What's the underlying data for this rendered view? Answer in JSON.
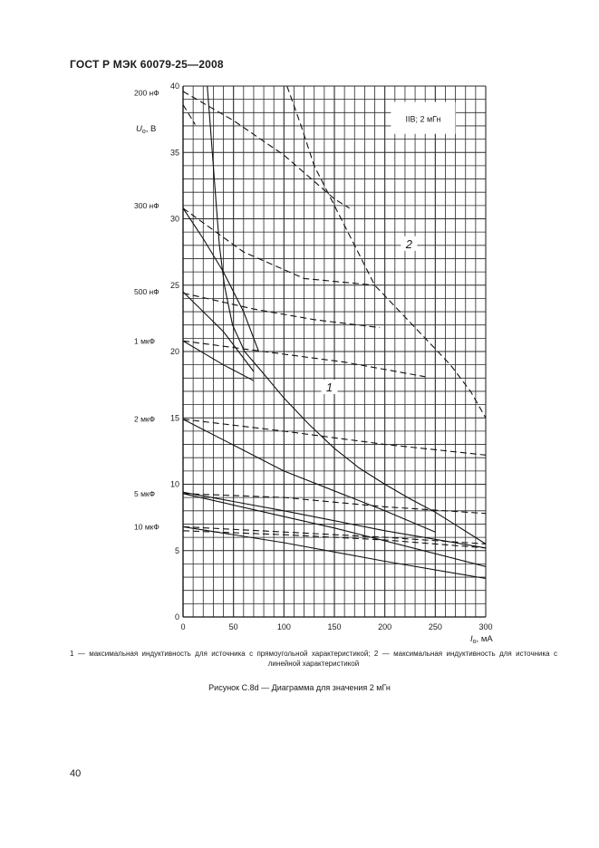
{
  "header": "ГОСТ Р МЭК 60079-25—2008",
  "page_number": "40",
  "caption": "1 — максимальная индуктивность для источника с прямоугольной характеристикой; 2 — максимальная индуктивность для источника с линейной характеристикой",
  "figure_title": "Рисунок C.8d — Диаграмма для значения 2 мГн",
  "chart_data": {
    "type": "line",
    "ylabel": "U",
    "ylabel_sub": "o",
    "ylabel_unit": ", В",
    "xlabel": "I",
    "xlabel_sub": "o",
    "xlabel_unit": ", мА",
    "xlim": [
      0,
      300
    ],
    "ylim": [
      0,
      40
    ],
    "xticks": [
      0,
      50,
      100,
      150,
      200,
      250,
      300
    ],
    "yticks": [
      0,
      5,
      10,
      15,
      20,
      25,
      30,
      35,
      40
    ],
    "grid": true,
    "grid_minor": {
      "x_step": 10,
      "y_step": 1
    },
    "box_label": "IIB; 2 мГн",
    "curve_labels": [
      {
        "text": "1",
        "x": 145,
        "y": 17.2
      },
      {
        "text": "2",
        "x": 224,
        "y": 28
      }
    ],
    "capacitance_labels": [
      {
        "text": "200 нФ",
        "y": 39.5
      },
      {
        "text": "300 нФ",
        "y": 31
      },
      {
        "text": "500 нФ",
        "y": 24.5
      },
      {
        "text": "1 мкФ",
        "y": 20.8
      },
      {
        "text": "2 мкФ",
        "y": 14.9
      },
      {
        "text": "5 мкФ",
        "y": 9.3
      },
      {
        "text": "10 мкФ",
        "y": 6.8
      }
    ],
    "series": [
      {
        "style": "solid",
        "points": [
          [
            24,
            40
          ],
          [
            27,
            37
          ],
          [
            30,
            34
          ],
          [
            33,
            31
          ],
          [
            36,
            28
          ],
          [
            41,
            25
          ],
          [
            49,
            22
          ],
          [
            61,
            20
          ],
          [
            78,
            18.5
          ],
          [
            100,
            16.5
          ],
          [
            125,
            14.5
          ],
          [
            150,
            12.7
          ],
          [
            175,
            11.2
          ],
          [
            200,
            10
          ],
          [
            225,
            8.9
          ],
          [
            250,
            7.9
          ],
          [
            275,
            6.7
          ],
          [
            300,
            5.5
          ]
        ]
      },
      {
        "style": "dashed",
        "points": [
          [
            103,
            40
          ],
          [
            117,
            37
          ],
          [
            130,
            34
          ],
          [
            150,
            31
          ],
          [
            170,
            28
          ],
          [
            190,
            25
          ],
          [
            215,
            23
          ],
          [
            240,
            21
          ],
          [
            265,
            19
          ],
          [
            285,
            17
          ],
          [
            300,
            15
          ]
        ]
      },
      {
        "style": "dashed",
        "points": [
          [
            0,
            39.6
          ],
          [
            50,
            37.4
          ],
          [
            100,
            34.8
          ],
          [
            150,
            31.5
          ],
          [
            165,
            30.8
          ]
        ]
      },
      {
        "style": "dashed",
        "points": [
          [
            0,
            38.6
          ],
          [
            12,
            37.1
          ]
        ]
      },
      {
        "style": "solid",
        "points": [
          [
            0,
            30.8
          ],
          [
            20,
            28.5
          ],
          [
            40,
            26
          ],
          [
            60,
            23
          ],
          [
            75,
            20
          ]
        ]
      },
      {
        "style": "dashed",
        "points": [
          [
            0,
            30.8
          ],
          [
            60,
            27.5
          ],
          [
            120,
            25.5
          ],
          [
            190,
            25
          ]
        ]
      },
      {
        "style": "solid",
        "points": [
          [
            0,
            24.5
          ],
          [
            40,
            21.5
          ],
          [
            70,
            18.5
          ]
        ]
      },
      {
        "style": "dashed",
        "points": [
          [
            0,
            24.4
          ],
          [
            70,
            23.2
          ],
          [
            130,
            22.4
          ],
          [
            195,
            21.8
          ]
        ]
      },
      {
        "style": "solid",
        "points": [
          [
            0,
            20.8
          ],
          [
            40,
            19
          ],
          [
            70,
            17.8
          ]
        ]
      },
      {
        "style": "dashed",
        "points": [
          [
            0,
            20.8
          ],
          [
            80,
            20
          ],
          [
            160,
            19.2
          ],
          [
            240,
            18.1
          ]
        ]
      },
      {
        "style": "solid",
        "points": [
          [
            0,
            14.9
          ],
          [
            100,
            11
          ],
          [
            200,
            8
          ],
          [
            250,
            6.4
          ]
        ]
      },
      {
        "style": "dashed",
        "points": [
          [
            0,
            14.9
          ],
          [
            100,
            14
          ],
          [
            200,
            13
          ],
          [
            300,
            12.2
          ]
        ]
      },
      {
        "style": "solid",
        "points": [
          [
            0,
            9.4
          ],
          [
            100,
            8
          ],
          [
            200,
            6.5
          ],
          [
            300,
            5.2
          ]
        ]
      },
      {
        "style": "solid",
        "points": [
          [
            0,
            9.3
          ],
          [
            150,
            6.7
          ],
          [
            300,
            3.8
          ]
        ]
      },
      {
        "style": "dashed",
        "points": [
          [
            0,
            9.3
          ],
          [
            100,
            9.0
          ],
          [
            200,
            8.3
          ],
          [
            300,
            7.8
          ]
        ]
      },
      {
        "style": "solid",
        "points": [
          [
            0,
            6.8
          ],
          [
            100,
            5.6
          ],
          [
            200,
            4.2
          ],
          [
            300,
            2.9
          ]
        ]
      },
      {
        "style": "dashed",
        "points": [
          [
            0,
            6.8
          ],
          [
            100,
            6.4
          ],
          [
            200,
            6
          ],
          [
            300,
            5.5
          ]
        ]
      },
      {
        "style": "dashed",
        "points": [
          [
            0,
            6.5
          ],
          [
            100,
            6.2
          ],
          [
            200,
            5.8
          ],
          [
            300,
            5.2
          ]
        ]
      }
    ]
  }
}
